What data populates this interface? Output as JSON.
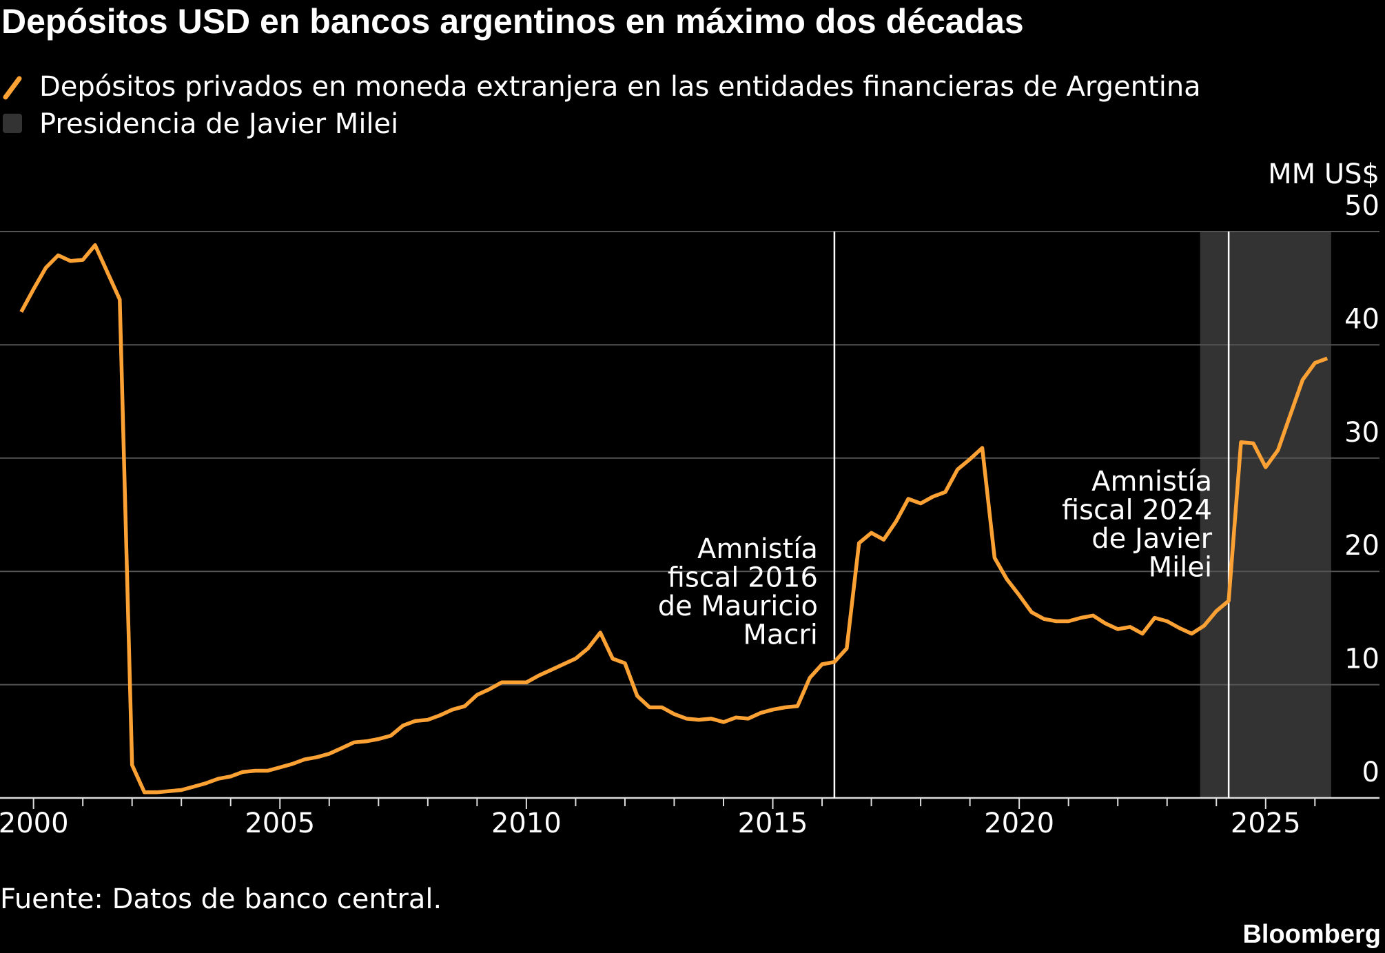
{
  "chart_data": {
    "type": "line",
    "title": "Depósitos USD en bancos argentinos en máximo dos décadas",
    "ylabel": "MM US$",
    "source": "Fuente: Datos de banco central.",
    "brand": "Bloomberg",
    "x": [
      1999.75,
      2000,
      2000.25,
      2000.5,
      2000.75,
      2001,
      2001.25,
      2001.5,
      2001.75,
      2002,
      2002.25,
      2002.5,
      2002.75,
      2003,
      2003.25,
      2003.5,
      2003.75,
      2004,
      2004.25,
      2004.5,
      2004.75,
      2005,
      2005.25,
      2005.5,
      2005.75,
      2006,
      2006.25,
      2006.5,
      2006.75,
      2007,
      2007.25,
      2007.5,
      2007.75,
      2008,
      2008.25,
      2008.5,
      2008.75,
      2009,
      2009.25,
      2009.5,
      2009.75,
      2010,
      2010.25,
      2010.5,
      2010.75,
      2011,
      2011.25,
      2011.5,
      2011.75,
      2012,
      2012.25,
      2012.5,
      2012.75,
      2013,
      2013.25,
      2013.5,
      2013.75,
      2014,
      2014.25,
      2014.5,
      2014.75,
      2015,
      2015.25,
      2015.5,
      2015.75,
      2016,
      2016.25,
      2016.5,
      2016.75,
      2017,
      2017.25,
      2017.5,
      2017.75,
      2018,
      2018.25,
      2018.5,
      2018.75,
      2019,
      2019.25,
      2019.5,
      2019.75,
      2020,
      2020.25,
      2020.5,
      2020.75,
      2021,
      2021.25,
      2021.5,
      2021.75,
      2022,
      2022.25,
      2022.5,
      2022.75,
      2023,
      2023.25,
      2023.5,
      2023.75,
      2024,
      2024.25,
      2024.5,
      2024.75,
      2025,
      2025.25,
      2025.5,
      2025.75,
      2026,
      2026.25
    ],
    "series": [
      {
        "name": "Depósitos privados en moneda extranjera en las entidades financieras de Argentina",
        "color": "#fca235",
        "values": [
          42.9,
          44.9,
          46.8,
          47.9,
          47.4,
          47.5,
          48.8,
          46.4,
          44.0,
          2.9,
          0.5,
          0.5,
          0.6,
          0.7,
          1.0,
          1.3,
          1.7,
          1.9,
          2.3,
          2.4,
          2.4,
          2.7,
          3.0,
          3.4,
          3.6,
          3.9,
          4.4,
          4.9,
          5.0,
          5.2,
          5.5,
          6.4,
          6.8,
          6.9,
          7.3,
          7.8,
          8.1,
          9.1,
          9.6,
          10.2,
          10.2,
          10.2,
          10.8,
          11.3,
          11.8,
          12.3,
          13.2,
          14.6,
          12.3,
          11.9,
          9.0,
          8.0,
          8.0,
          7.4,
          7.0,
          6.9,
          7.0,
          6.7,
          7.1,
          7.0,
          7.5,
          7.8,
          8.0,
          8.1,
          10.6,
          11.8,
          12.0,
          13.2,
          22.5,
          23.4,
          22.8,
          24.4,
          26.4,
          26.0,
          26.6,
          27.0,
          29.0,
          29.9,
          30.9,
          21.2,
          19.3,
          17.9,
          16.4,
          15.8,
          15.6,
          15.6,
          15.9,
          16.1,
          15.4,
          14.9,
          15.1,
          14.5,
          15.9,
          15.6,
          15.0,
          14.5,
          15.2,
          16.5,
          17.4,
          31.4,
          31.3,
          29.2,
          30.7,
          33.8,
          36.9,
          38.4,
          38.8
        ]
      }
    ],
    "shade": {
      "name": "Presidencia de Javier Milei",
      "color": "#333333",
      "start": 2023.67,
      "end": 2026.33
    },
    "annotations": [
      {
        "x": 2016.25,
        "lines": [
          "Amnistía",
          "fiscal 2016",
          "de Mauricio",
          "Macri"
        ]
      },
      {
        "x": 2024.25,
        "lines": [
          "Amnistía",
          "fiscal 2024",
          "de Javier",
          "Milei"
        ]
      }
    ],
    "xlim": [
      1999.32,
      2027.31
    ],
    "xticks": [
      2000,
      2005,
      2010,
      2015,
      2020,
      2025
    ],
    "xminorticks": [
      2001,
      2002,
      2003,
      2004,
      2006,
      2007,
      2008,
      2009,
      2011,
      2012,
      2013,
      2014,
      2016,
      2017,
      2018,
      2019,
      2021,
      2022,
      2023,
      2024,
      2026
    ],
    "ylim": [
      0,
      50
    ],
    "yticks": [
      0,
      10,
      20,
      30,
      40,
      50
    ],
    "grid": true
  }
}
